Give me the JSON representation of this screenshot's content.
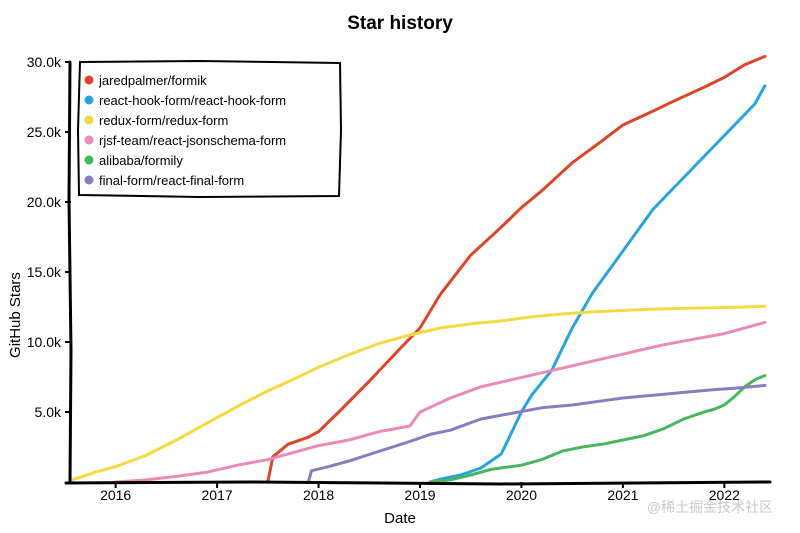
{
  "chart_data": {
    "type": "line",
    "title": "Star history",
    "xlabel": "Date",
    "ylabel": "GitHub Stars",
    "x_ticks": [
      "2016",
      "2017",
      "2018",
      "2019",
      "2020",
      "2021",
      "2022"
    ],
    "y_ticks": [
      "5.0k",
      "10.0k",
      "15.0k",
      "20.0k",
      "25.0k",
      "30.0k"
    ],
    "xlim": [
      2015.55,
      2022.45
    ],
    "ylim": [
      0,
      30000
    ],
    "legend_position": "top-left",
    "grid": false,
    "series": [
      {
        "name": "jaredpalmer/formik",
        "color": "#dd4528",
        "x": [
          2017.5,
          2017.55,
          2017.7,
          2017.9,
          2018.0,
          2018.2,
          2018.5,
          2018.8,
          2019.0,
          2019.2,
          2019.5,
          2019.8,
          2020.0,
          2020.2,
          2020.5,
          2020.8,
          2021.0,
          2021.3,
          2021.5,
          2021.8,
          2022.0,
          2022.2,
          2022.4
        ],
        "y": [
          0,
          1800,
          2700,
          3200,
          3600,
          5000,
          7200,
          9500,
          11000,
          13400,
          16200,
          18200,
          19600,
          20800,
          22800,
          24400,
          25500,
          26500,
          27200,
          28200,
          28900,
          29800,
          30400
        ]
      },
      {
        "name": "react-hook-form/react-hook-form",
        "color": "#28a3dd",
        "x": [
          2019.1,
          2019.2,
          2019.4,
          2019.6,
          2019.8,
          2020.0,
          2020.1,
          2020.3,
          2020.5,
          2020.7,
          2020.9,
          2021.1,
          2021.3,
          2021.5,
          2021.7,
          2021.9,
          2022.1,
          2022.3,
          2022.4
        ],
        "y": [
          0,
          200,
          500,
          1000,
          2000,
          5000,
          6200,
          8000,
          11000,
          13500,
          15500,
          17500,
          19500,
          21000,
          22500,
          24000,
          25500,
          27000,
          28300
        ]
      },
      {
        "name": "redux-form/redux-form",
        "color": "#f4d943",
        "x": [
          2015.55,
          2015.8,
          2016.0,
          2016.3,
          2016.6,
          2016.9,
          2017.2,
          2017.5,
          2017.8,
          2018.0,
          2018.3,
          2018.6,
          2018.9,
          2019.2,
          2019.5,
          2019.8,
          2020.1,
          2020.4,
          2020.7,
          2021.0,
          2021.3,
          2021.6,
          2021.9,
          2022.2,
          2022.4
        ],
        "y": [
          100,
          700,
          1100,
          1900,
          3000,
          4200,
          5400,
          6500,
          7500,
          8200,
          9100,
          9900,
          10500,
          11000,
          11300,
          11500,
          11800,
          12000,
          12150,
          12250,
          12350,
          12400,
          12450,
          12500,
          12550
        ]
      },
      {
        "name": "rjsf-team/react-jsonschema-form",
        "color": "#ea8ab8",
        "x": [
          2016.0,
          2016.3,
          2016.6,
          2016.9,
          2017.2,
          2017.5,
          2017.8,
          2018.0,
          2018.3,
          2018.6,
          2018.9,
          2019.0,
          2019.3,
          2019.6,
          2019.9,
          2020.2,
          2020.5,
          2020.8,
          2021.1,
          2021.4,
          2021.7,
          2022.0,
          2022.2,
          2022.4
        ],
        "y": [
          0,
          150,
          400,
          700,
          1200,
          1600,
          2200,
          2600,
          3000,
          3600,
          4000,
          5000,
          6000,
          6800,
          7300,
          7800,
          8300,
          8800,
          9300,
          9800,
          10200,
          10600,
          11000,
          11400
        ]
      },
      {
        "name": "alibaba/formily",
        "color": "#47b75b",
        "x": [
          2019.1,
          2019.3,
          2019.5,
          2019.7,
          2020.0,
          2020.2,
          2020.4,
          2020.6,
          2020.8,
          2021.0,
          2021.2,
          2021.4,
          2021.6,
          2021.8,
          2021.9,
          2022.0,
          2022.1,
          2022.2,
          2022.3,
          2022.4
        ],
        "y": [
          0,
          150,
          500,
          900,
          1200,
          1600,
          2200,
          2500,
          2700,
          3000,
          3300,
          3800,
          4500,
          5000,
          5200,
          5500,
          6100,
          6800,
          7300,
          7600
        ]
      },
      {
        "name": "final-form/react-final-form",
        "color": "#8b7bbf",
        "x": [
          2017.9,
          2017.93,
          2018.1,
          2018.3,
          2018.6,
          2018.9,
          2019.1,
          2019.3,
          2019.6,
          2019.9,
          2020.2,
          2020.5,
          2020.8,
          2021.0,
          2021.3,
          2021.6,
          2021.9,
          2022.1,
          2022.4
        ],
        "y": [
          0,
          800,
          1100,
          1500,
          2200,
          2900,
          3400,
          3700,
          4500,
          4900,
          5300,
          5500,
          5800,
          6000,
          6200,
          6400,
          6600,
          6700,
          6900
        ]
      }
    ]
  },
  "watermark": "@稀土掘金技术社区"
}
